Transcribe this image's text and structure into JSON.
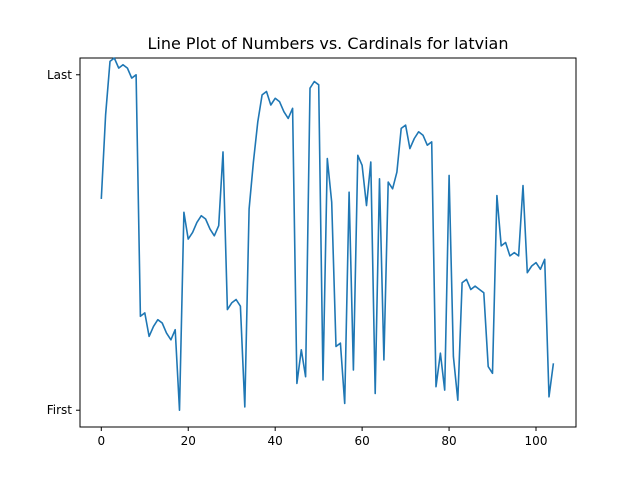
{
  "chart_data": {
    "type": "line",
    "title": "Line Plot of Numbers vs. Cardinals for latvian",
    "xlabel": "",
    "ylabel": "",
    "xlim": [
      -4.9,
      109.2
    ],
    "ylim": [
      -0.05,
      1.05
    ],
    "x_ticks": [
      0,
      20,
      40,
      60,
      80,
      100
    ],
    "y_ticks": [
      {
        "value": 0,
        "label": "First"
      },
      {
        "value": 1,
        "label": "Last"
      }
    ],
    "grid": false,
    "line_color": "#1f77b4",
    "x": [
      0,
      1,
      2,
      3,
      4,
      5,
      6,
      7,
      8,
      9,
      10,
      11,
      12,
      13,
      14,
      15,
      16,
      17,
      18,
      19,
      20,
      21,
      22,
      23,
      24,
      25,
      26,
      27,
      28,
      29,
      30,
      31,
      32,
      33,
      34,
      35,
      36,
      37,
      38,
      39,
      40,
      41,
      42,
      43,
      44,
      45,
      46,
      47,
      48,
      49,
      50,
      51,
      52,
      53,
      54,
      55,
      56,
      57,
      58,
      59,
      60,
      61,
      62,
      63,
      64,
      65,
      66,
      67,
      68,
      69,
      70,
      71,
      72,
      73,
      74,
      75,
      76,
      77,
      78,
      79,
      80,
      81,
      82,
      83,
      84,
      85,
      86,
      87,
      88,
      89,
      90,
      91,
      92,
      93,
      94,
      95,
      96,
      97,
      98,
      99,
      100,
      101,
      102,
      103,
      104
    ],
    "values": [
      0.63,
      0.88,
      1.04,
      1.05,
      1.02,
      1.03,
      1.02,
      0.99,
      1.0,
      0.28,
      0.29,
      0.22,
      0.25,
      0.27,
      0.26,
      0.23,
      0.21,
      0.24,
      0.0,
      0.59,
      0.51,
      0.53,
      0.56,
      0.58,
      0.57,
      0.54,
      0.52,
      0.55,
      0.77,
      0.3,
      0.32,
      0.33,
      0.31,
      0.01,
      0.6,
      0.74,
      0.86,
      0.94,
      0.95,
      0.91,
      0.93,
      0.92,
      0.89,
      0.87,
      0.9,
      0.08,
      0.18,
      0.1,
      0.96,
      0.98,
      0.97,
      0.09,
      0.75,
      0.62,
      0.19,
      0.2,
      0.02,
      0.65,
      0.12,
      0.76,
      0.73,
      0.61,
      0.74,
      0.05,
      0.69,
      0.15,
      0.68,
      0.66,
      0.71,
      0.84,
      0.85,
      0.78,
      0.81,
      0.83,
      0.82,
      0.79,
      0.8,
      0.07,
      0.17,
      0.06,
      0.7,
      0.16,
      0.03,
      0.38,
      0.39,
      0.36,
      0.37,
      0.36,
      0.35,
      0.13,
      0.11,
      0.64,
      0.49,
      0.5,
      0.46,
      0.47,
      0.46,
      0.67,
      0.41,
      0.43,
      0.44,
      0.42,
      0.45,
      0.04,
      0.14
    ]
  }
}
